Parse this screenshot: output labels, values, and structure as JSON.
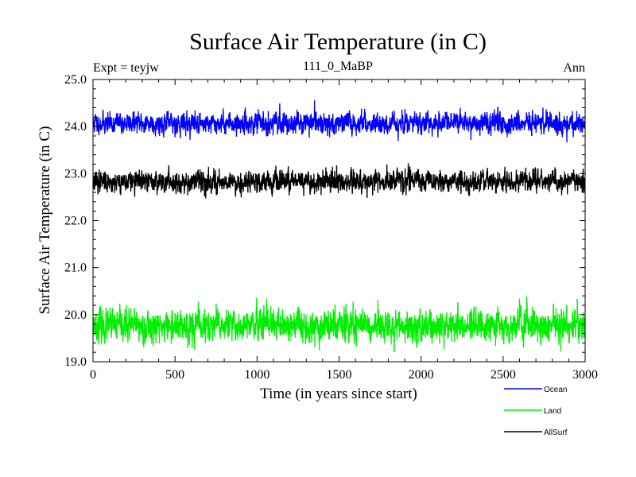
{
  "chart_data": {
    "type": "line",
    "title": "Surface Air Temperature (in C)",
    "subtitle": "111_0_MaBP",
    "expt_label": "Expt = teyjw",
    "period_label": "Ann",
    "xlabel": "Time (in years since start)",
    "ylabel": "Surface Air Temperature (in C)",
    "xlim": [
      0,
      3000
    ],
    "ylim": [
      19.0,
      25.0
    ],
    "xticks": [
      0,
      500,
      1000,
      1500,
      2000,
      2500,
      3000
    ],
    "yticks": [
      19.0,
      20.0,
      21.0,
      22.0,
      23.0,
      24.0,
      25.0
    ],
    "ytick_labels": [
      "19.0",
      "20.0",
      "21.0",
      "22.0",
      "23.0",
      "24.0",
      "25.0"
    ],
    "n_points": 3000,
    "legend_position": "below-right",
    "series": [
      {
        "name": "Ocean",
        "color": "#0000ff",
        "mean": 24.07,
        "spread": 0.1,
        "seed": 11
      },
      {
        "name": "Land",
        "color": "#00ee00",
        "mean": 19.76,
        "spread": 0.15,
        "seed": 23
      },
      {
        "name": "AllSurf",
        "color": "#000000",
        "mean": 22.83,
        "spread": 0.1,
        "seed": 37
      }
    ]
  }
}
